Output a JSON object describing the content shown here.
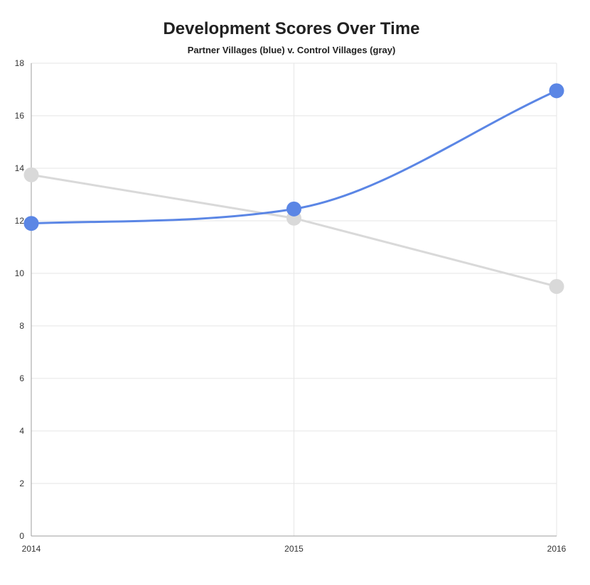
{
  "chart_data": {
    "type": "line",
    "title": "Development Scores Over Time",
    "subtitle": "Partner Villages (blue) v. Control Villages (gray)",
    "xlabel": "",
    "ylabel": "",
    "x": [
      2014,
      2015,
      2016
    ],
    "x_tick_labels": [
      "2014",
      "2015",
      "2016"
    ],
    "xlim": [
      2014,
      2016
    ],
    "ylim": [
      0,
      18
    ],
    "y_ticks": [
      0,
      2,
      4,
      6,
      8,
      10,
      12,
      14,
      16,
      18
    ],
    "y_tick_labels": [
      "0",
      "2",
      "4",
      "6",
      "8",
      "10",
      "12",
      "14",
      "16",
      "18"
    ],
    "grid": true,
    "legend": "none",
    "series": [
      {
        "values": [
          13.75,
          12.1,
          9.5
        ],
        "color": "#d9d9d9",
        "curve": "straight"
      },
      {
        "values": [
          11.9,
          12.45,
          16.95
        ],
        "color": "#5b86e5",
        "curve": "smooth"
      }
    ]
  }
}
